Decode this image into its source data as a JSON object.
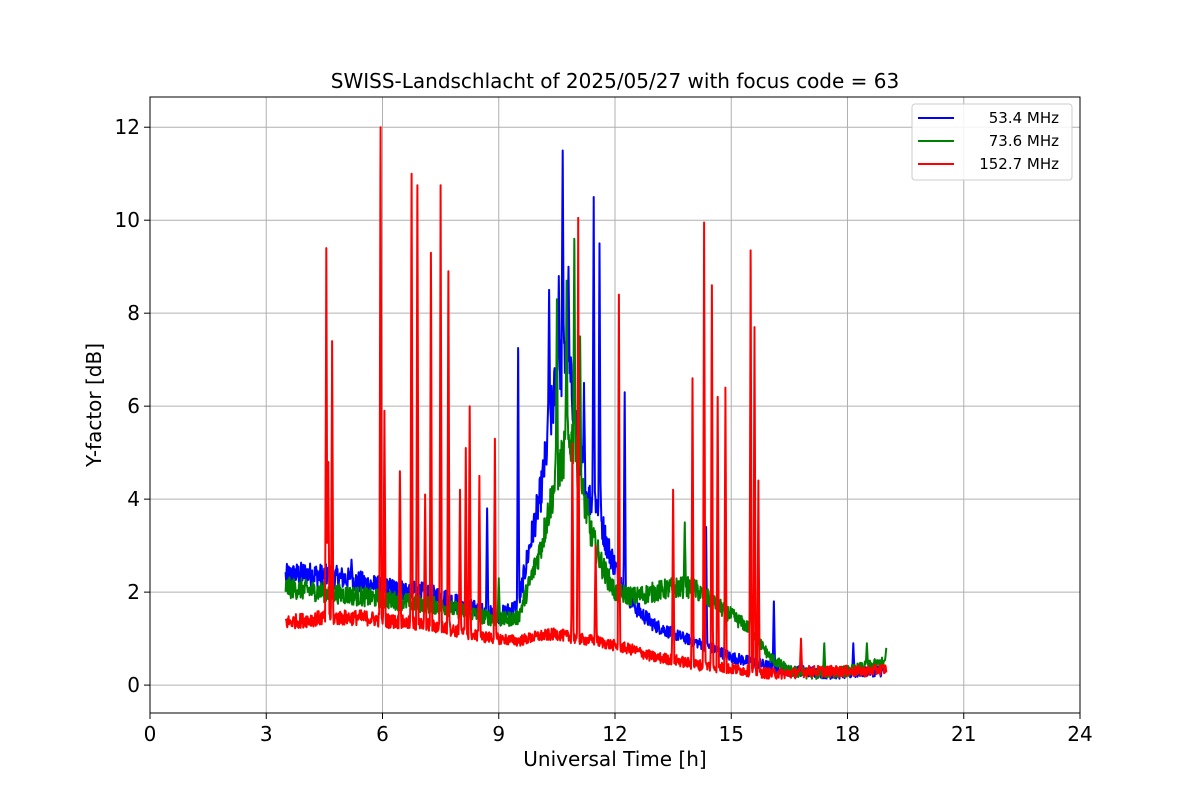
{
  "chart_data": {
    "type": "line",
    "title": "SWISS-Landschlacht of 2025/05/27 with focus code = 63",
    "xlabel": "Universal Time [h]",
    "ylabel": "Y-factor [dB]",
    "xlim": [
      0,
      24
    ],
    "ylim": [
      -0.6,
      12.65
    ],
    "xticks": [
      0,
      3,
      6,
      9,
      12,
      15,
      18,
      21,
      24
    ],
    "yticks": [
      0,
      2,
      4,
      6,
      8,
      10,
      12
    ],
    "grid": true,
    "legend_position": "top-right",
    "series": [
      {
        "name": "53.4 MHz",
        "color": "#0000ff",
        "x": [
          3.5,
          4.0,
          4.5,
          5.0,
          5.5,
          6.0,
          6.5,
          7.0,
          7.5,
          8.0,
          8.5,
          9.0,
          9.5,
          9.8,
          10.1,
          10.3,
          10.5,
          10.7,
          10.9,
          11.1,
          11.3,
          11.5,
          11.8,
          12.2,
          12.6,
          13.0,
          13.5,
          14.0,
          14.5,
          15.0,
          15.5,
          16.0,
          16.5,
          17.0,
          17.5,
          18.0,
          18.5,
          19.0
        ],
        "y": [
          2.35,
          2.4,
          2.35,
          2.3,
          2.2,
          2.1,
          2.05,
          2.0,
          1.9,
          1.75,
          1.6,
          1.5,
          1.7,
          3.0,
          4.2,
          5.5,
          6.6,
          7.0,
          6.3,
          4.9,
          4.0,
          4.0,
          3.0,
          2.1,
          1.6,
          1.3,
          1.1,
          0.95,
          0.8,
          0.6,
          0.5,
          0.4,
          0.3,
          0.3,
          0.25,
          0.25,
          0.3,
          0.3
        ],
        "spikes": [
          [
            5.2,
            2.7
          ],
          [
            8.7,
            3.8
          ],
          [
            9.5,
            7.25
          ],
          [
            10.3,
            8.5
          ],
          [
            10.55,
            8.8
          ],
          [
            10.65,
            11.5
          ],
          [
            10.8,
            9.0
          ],
          [
            11.2,
            6.5
          ],
          [
            11.45,
            10.5
          ],
          [
            11.6,
            9.5
          ],
          [
            12.25,
            6.3
          ],
          [
            14.35,
            3.4
          ],
          [
            16.1,
            1.8
          ],
          [
            18.15,
            0.9
          ]
        ]
      },
      {
        "name": "73.6 MHz",
        "color": "#008000",
        "x": [
          3.5,
          4.0,
          4.5,
          5.0,
          5.5,
          6.0,
          6.5,
          7.0,
          7.5,
          8.0,
          8.5,
          9.0,
          9.5,
          9.8,
          10.1,
          10.3,
          10.5,
          10.7,
          10.9,
          11.1,
          11.4,
          11.7,
          12.0,
          12.5,
          13.0,
          13.5,
          14.0,
          14.5,
          15.0,
          15.5,
          16.0,
          16.5,
          17.0,
          17.5,
          18.0,
          18.5,
          19.0
        ],
        "y": [
          2.1,
          2.05,
          2.0,
          1.95,
          1.9,
          1.85,
          1.8,
          1.75,
          1.7,
          1.6,
          1.5,
          1.4,
          1.45,
          2.2,
          3.0,
          3.8,
          4.5,
          5.0,
          5.3,
          4.4,
          3.2,
          2.5,
          2.0,
          1.9,
          2.0,
          2.1,
          2.1,
          1.8,
          1.5,
          1.2,
          0.6,
          0.3,
          0.25,
          0.25,
          0.3,
          0.4,
          0.5
        ],
        "spikes": [
          [
            9.0,
            2.3
          ],
          [
            10.5,
            8.3
          ],
          [
            10.75,
            8.7
          ],
          [
            10.95,
            9.6
          ],
          [
            11.1,
            7.5
          ],
          [
            13.8,
            3.5
          ],
          [
            15.5,
            2.2
          ],
          [
            17.4,
            0.9
          ],
          [
            18.5,
            0.9
          ],
          [
            19.0,
            0.8
          ]
        ]
      },
      {
        "name": "152.7 MHz",
        "color": "#ff0000",
        "x": [
          3.5,
          4.0,
          4.5,
          5.0,
          5.5,
          6.0,
          6.5,
          7.0,
          7.5,
          8.0,
          8.5,
          9.0,
          9.5,
          10.0,
          10.5,
          11.0,
          11.5,
          12.0,
          12.5,
          13.0,
          13.5,
          14.0,
          14.5,
          15.0,
          15.5,
          16.0,
          16.5,
          17.0,
          17.5,
          18.0,
          18.5,
          19.0
        ],
        "y": [
          1.35,
          1.4,
          1.45,
          1.45,
          1.45,
          1.4,
          1.35,
          1.3,
          1.25,
          1.15,
          1.05,
          1.0,
          0.95,
          1.05,
          1.1,
          1.0,
          0.95,
          0.85,
          0.75,
          0.6,
          0.55,
          0.45,
          0.4,
          0.35,
          0.3,
          0.25,
          0.25,
          0.3,
          0.3,
          0.3,
          0.3,
          0.35
        ],
        "spikes": [
          [
            4.55,
            9.4
          ],
          [
            4.6,
            4.8
          ],
          [
            4.7,
            7.4
          ],
          [
            5.95,
            12.0
          ],
          [
            6.05,
            5.9
          ],
          [
            6.45,
            4.6
          ],
          [
            6.75,
            11.0
          ],
          [
            6.9,
            10.75
          ],
          [
            7.1,
            4.1
          ],
          [
            7.25,
            9.3
          ],
          [
            7.5,
            10.75
          ],
          [
            7.7,
            8.9
          ],
          [
            8.0,
            4.2
          ],
          [
            8.15,
            5.1
          ],
          [
            8.25,
            6.0
          ],
          [
            8.5,
            4.5
          ],
          [
            8.9,
            5.3
          ],
          [
            10.9,
            5.2
          ],
          [
            11.05,
            10.05
          ],
          [
            11.5,
            3.0
          ],
          [
            12.1,
            8.4
          ],
          [
            13.5,
            4.2
          ],
          [
            14.0,
            6.6
          ],
          [
            14.3,
            9.95
          ],
          [
            14.5,
            8.6
          ],
          [
            14.65,
            6.2
          ],
          [
            14.85,
            6.4
          ],
          [
            15.5,
            9.35
          ],
          [
            15.6,
            7.7
          ],
          [
            15.7,
            4.4
          ],
          [
            16.8,
            1.0
          ]
        ]
      }
    ]
  }
}
